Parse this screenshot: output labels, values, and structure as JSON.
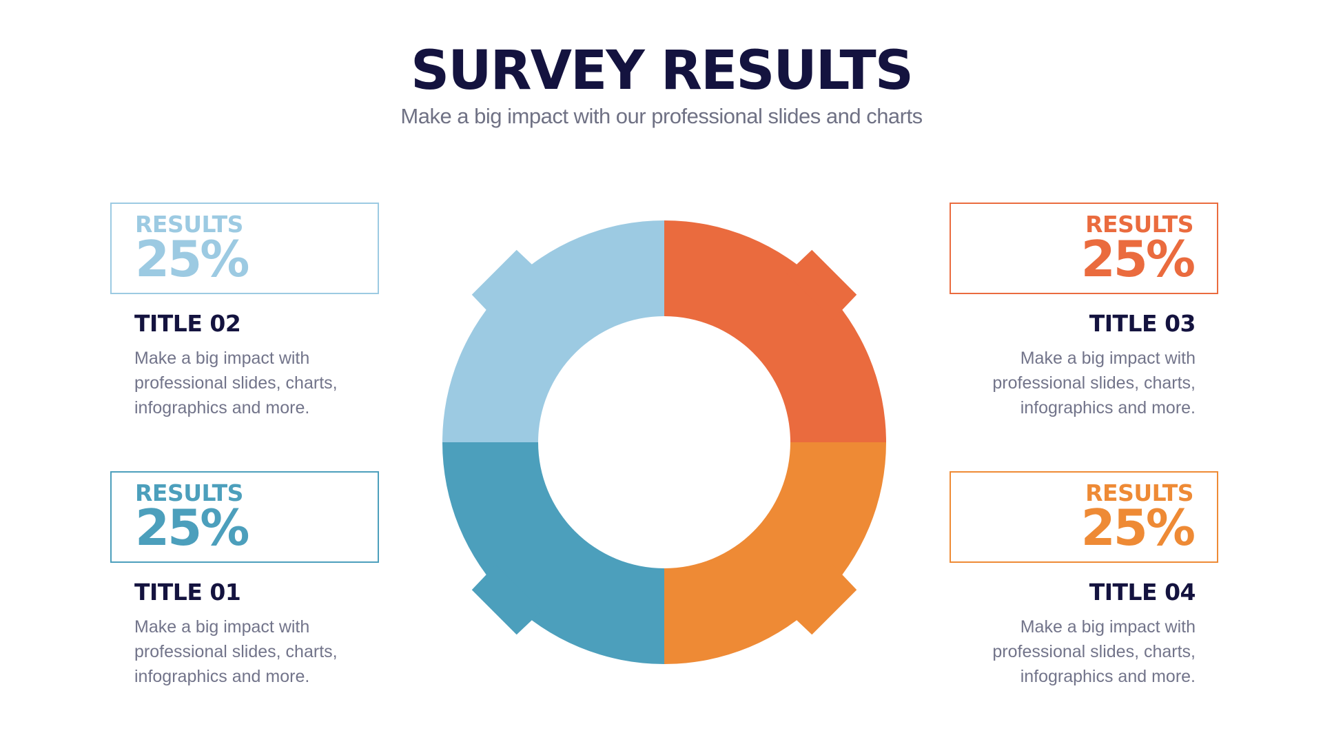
{
  "header": {
    "title": "SURVEY RESULTS",
    "subtitle": "Make a big impact with our professional slides and charts"
  },
  "colors": {
    "light_blue": "#9ccae2",
    "teal": "#4c9fbc",
    "red_orange": "#ea6b3e",
    "orange": "#ee8a35",
    "navy": "#14133f",
    "gray_text": "#72748a"
  },
  "chart_data": {
    "type": "pie",
    "style": "donut",
    "categories": [
      "TITLE 01",
      "TITLE 02",
      "TITLE 03",
      "TITLE 04"
    ],
    "values": [
      25,
      25,
      25,
      25
    ],
    "unit": "%"
  },
  "items": [
    {
      "key": "t02",
      "result_label": "RESULTS",
      "value": "25%",
      "title": "TITLE 02",
      "description": "Make a big impact with professional slides, charts, infographics and more.",
      "color": "#9ccae2"
    },
    {
      "key": "t01",
      "result_label": "RESULTS",
      "value": "25%",
      "title": "TITLE 01",
      "description": "Make a big impact with professional slides, charts, infographics and more.",
      "color": "#4c9fbc"
    },
    {
      "key": "t03",
      "result_label": "RESULTS",
      "value": "25%",
      "title": "TITLE 03",
      "description": "Make a big impact with professional slides, charts, infographics and more.",
      "color": "#ea6b3e"
    },
    {
      "key": "t04",
      "result_label": "RESULTS",
      "value": "25%",
      "title": "TITLE 04",
      "description": "Make a big impact with professional slides, charts, infographics and more.",
      "color": "#ee8a35"
    }
  ]
}
